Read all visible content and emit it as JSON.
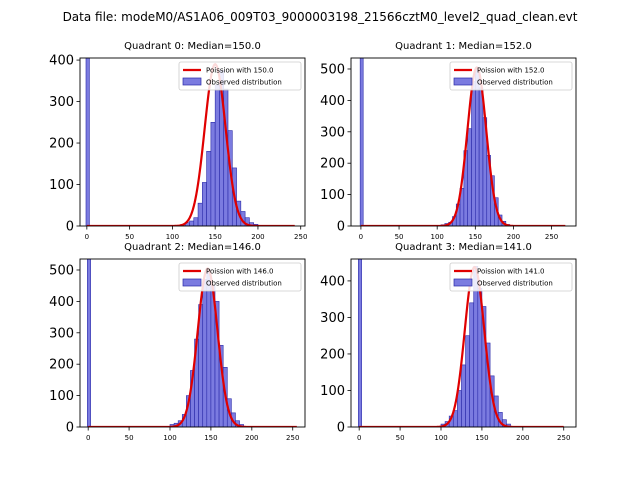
{
  "figure": {
    "suptitle": "Data file: modeM0/AS1A06_009T03_9000003198_21566cztM0_level2_quad_clean.evt"
  },
  "colors": {
    "hist_fill": "#7b7be0",
    "hist_edge": "#2a2aa8",
    "poisson": "#e00000"
  },
  "chart_data": [
    {
      "type": "bar",
      "title": "Quadrant 0: Median=150.0",
      "xlim": [
        -8,
        255
      ],
      "ylim": [
        0,
        405
      ],
      "xticks": [
        0,
        50,
        100,
        150,
        200,
        250
      ],
      "yticks": [
        0,
        100,
        200,
        300,
        400
      ],
      "legend": [
        "Poission with 150.0",
        "Observed distribution"
      ],
      "legend_loc": "upper right",
      "series": [
        {
          "name": "Poission with 150.0",
          "kind": "line",
          "mean": 150.0,
          "peak": 390,
          "sigma": 12.2,
          "x_range": [
            0,
            243
          ]
        },
        {
          "name": "Observed distribution",
          "kind": "histogram",
          "bin_width": 5,
          "spike": {
            "x0": -1,
            "x1": 3,
            "value": 405
          },
          "bins": [
            [
              110,
              4
            ],
            [
              115,
              8
            ],
            [
              120,
              12
            ],
            [
              125,
              20
            ],
            [
              130,
              55
            ],
            [
              135,
              105
            ],
            [
              140,
              180
            ],
            [
              145,
              250
            ],
            [
              150,
              340
            ],
            [
              155,
              375
            ],
            [
              160,
              330
            ],
            [
              165,
              230
            ],
            [
              170,
              140
            ],
            [
              175,
              60
            ],
            [
              180,
              35
            ],
            [
              185,
              20
            ],
            [
              190,
              8
            ],
            [
              195,
              4
            ]
          ]
        }
      ]
    },
    {
      "type": "bar",
      "title": "Quadrant 1: Median=152.0",
      "xlim": [
        -13,
        282
      ],
      "ylim": [
        0,
        535
      ],
      "xticks": [
        0,
        50,
        100,
        150,
        200,
        250
      ],
      "yticks": [
        0,
        100,
        200,
        300,
        400,
        500
      ],
      "legend": [
        "Poission with 152.0",
        "Observed distribution"
      ],
      "legend_loc": "upper right",
      "series": [
        {
          "name": "Poission with 152.0",
          "kind": "line",
          "mean": 152.0,
          "peak": 505,
          "sigma": 12.3,
          "x_range": [
            0,
            268
          ]
        },
        {
          "name": "Observed distribution",
          "kind": "histogram",
          "bin_width": 5,
          "spike": {
            "x0": -1,
            "x1": 3,
            "value": 535
          },
          "bins": [
            [
              105,
              4
            ],
            [
              110,
              8
            ],
            [
              115,
              12
            ],
            [
              120,
              30
            ],
            [
              125,
              70
            ],
            [
              130,
              120
            ],
            [
              135,
              240
            ],
            [
              140,
              310
            ],
            [
              145,
              460
            ],
            [
              150,
              500
            ],
            [
              155,
              440
            ],
            [
              160,
              345
            ],
            [
              165,
              225
            ],
            [
              170,
              160
            ],
            [
              175,
              90
            ],
            [
              180,
              35
            ],
            [
              185,
              15
            ],
            [
              190,
              5
            ]
          ]
        }
      ]
    },
    {
      "type": "bar",
      "title": "Quadrant 2: Median=146.0",
      "xlim": [
        -10,
        265
      ],
      "ylim": [
        0,
        535
      ],
      "xticks": [
        0,
        50,
        100,
        150,
        200,
        250
      ],
      "yticks": [
        0,
        100,
        200,
        300,
        400,
        500
      ],
      "legend": [
        "Poission with 146.0",
        "Observed distribution"
      ],
      "legend_loc": "upper right",
      "series": [
        {
          "name": "Poission with 146.0",
          "kind": "line",
          "mean": 146.0,
          "peak": 505,
          "sigma": 12.1,
          "x_range": [
            0,
            255
          ]
        },
        {
          "name": "Observed distribution",
          "kind": "histogram",
          "bin_width": 5,
          "spike": {
            "x0": -1,
            "x1": 3,
            "value": 535
          },
          "bins": [
            [
              100,
              8
            ],
            [
              105,
              12
            ],
            [
              110,
              20
            ],
            [
              115,
              40
            ],
            [
              120,
              100
            ],
            [
              125,
              180
            ],
            [
              130,
              280
            ],
            [
              135,
              390
            ],
            [
              140,
              470
            ],
            [
              145,
              500
            ],
            [
              150,
              450
            ],
            [
              155,
              400
            ],
            [
              160,
              260
            ],
            [
              165,
              190
            ],
            [
              170,
              90
            ],
            [
              175,
              45
            ],
            [
              180,
              20
            ],
            [
              185,
              8
            ]
          ]
        }
      ]
    },
    {
      "type": "bar",
      "title": "Quadrant 3: Median=141.0",
      "xlim": [
        -10,
        265
      ],
      "ylim": [
        0,
        460
      ],
      "xticks": [
        0,
        50,
        100,
        150,
        200,
        250
      ],
      "yticks": [
        0,
        100,
        200,
        300,
        400
      ],
      "legend": [
        "Poission with 141.0",
        "Observed distribution"
      ],
      "legend_loc": "upper right",
      "series": [
        {
          "name": "Poission with 141.0",
          "kind": "line",
          "mean": 141.0,
          "peak": 438,
          "sigma": 11.9,
          "x_range": [
            0,
            250
          ]
        },
        {
          "name": "Observed distribution",
          "kind": "histogram",
          "bin_width": 5,
          "spike": {
            "x0": -1,
            "x1": 3,
            "value": 460
          },
          "bins": [
            [
              100,
              8
            ],
            [
              105,
              15
            ],
            [
              110,
              30
            ],
            [
              115,
              45
            ],
            [
              120,
              100
            ],
            [
              125,
              170
            ],
            [
              130,
              250
            ],
            [
              135,
              340
            ],
            [
              140,
              440
            ],
            [
              145,
              380
            ],
            [
              150,
              330
            ],
            [
              155,
              230
            ],
            [
              160,
              140
            ],
            [
              165,
              85
            ],
            [
              170,
              40
            ],
            [
              175,
              20
            ],
            [
              180,
              8
            ]
          ]
        }
      ]
    }
  ]
}
